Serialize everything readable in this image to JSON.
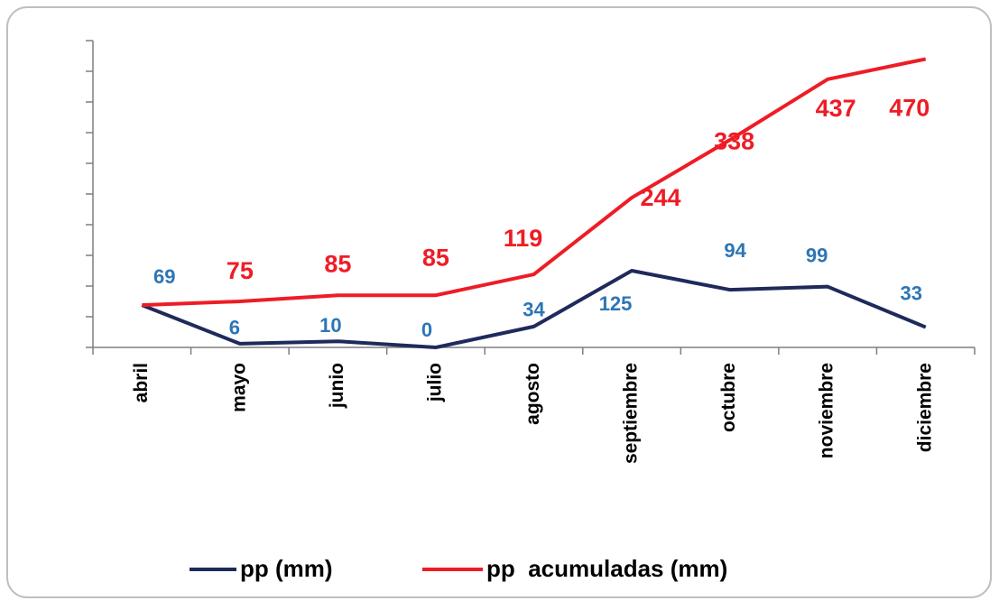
{
  "chart_data": {
    "type": "line",
    "categories": [
      "abril",
      "mayo",
      "junio",
      "julio",
      "agosto",
      "septiembre",
      "octubre",
      "noviembre",
      "diciembre"
    ],
    "series": [
      {
        "name": "pp (mm)",
        "color": "#1f2a5c",
        "label_color": "#2e75b6",
        "values": [
          69,
          6,
          10,
          0,
          34,
          125,
          94,
          99,
          33
        ]
      },
      {
        "name": "pp  acumuladas (mm)",
        "color": "#ee1c25",
        "label_color": "#ee1c25",
        "values": [
          69,
          75,
          85,
          85,
          119,
          244,
          338,
          437,
          470
        ],
        "value_labels": [
          null,
          "75",
          "85",
          "85",
          "119",
          "244",
          "338",
          "437",
          "470"
        ]
      }
    ],
    "ylim": [
      0,
      500
    ],
    "yticks": [
      0,
      50,
      100,
      150,
      200,
      250,
      300,
      350,
      400,
      450,
      500
    ],
    "legend": "bottom"
  }
}
